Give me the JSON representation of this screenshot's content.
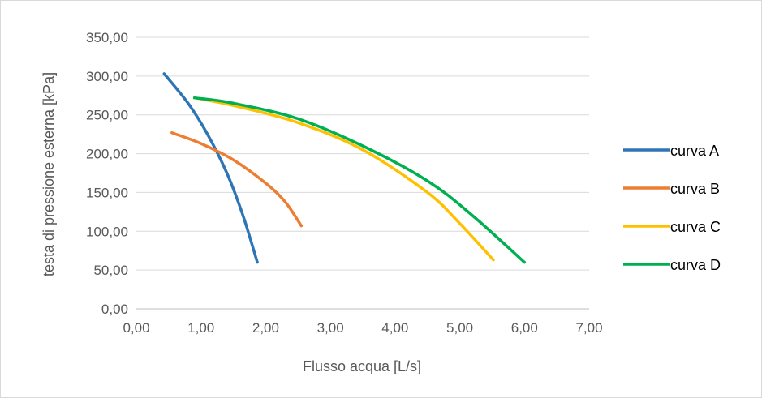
{
  "chart_data": {
    "type": "line",
    "title": "",
    "xlabel": "Flusso acqua [L/s]",
    "ylabel": "testa di pressione esterna  [kPa]",
    "xlim": [
      0,
      7
    ],
    "ylim": [
      0,
      350
    ],
    "x_ticks": [
      "0,00",
      "1,00",
      "2,00",
      "3,00",
      "4,00",
      "5,00",
      "6,00",
      "7,00"
    ],
    "y_ticks": [
      "0,00",
      "50,00",
      "100,00",
      "150,00",
      "200,00",
      "250,00",
      "300,00",
      "350,00"
    ],
    "grid": "horizontal",
    "legend_position": "right",
    "series": [
      {
        "name": "curva A",
        "color": "#2E75B6",
        "points": [
          [
            0.43,
            303
          ],
          [
            0.8,
            265
          ],
          [
            1.1,
            225
          ],
          [
            1.4,
            175
          ],
          [
            1.65,
            120
          ],
          [
            1.87,
            60
          ]
        ]
      },
      {
        "name": "curva B",
        "color": "#ED7D31",
        "points": [
          [
            0.55,
            227
          ],
          [
            1.0,
            213
          ],
          [
            1.5,
            192
          ],
          [
            2.0,
            162
          ],
          [
            2.3,
            138
          ],
          [
            2.55,
            107
          ]
        ]
      },
      {
        "name": "curva C",
        "color": "#FFC000",
        "points": [
          [
            0.9,
            272
          ],
          [
            1.5,
            262
          ],
          [
            2.5,
            240
          ],
          [
            3.5,
            205
          ],
          [
            4.5,
            150
          ],
          [
            5.0,
            110
          ],
          [
            5.52,
            63
          ]
        ]
      },
      {
        "name": "curva D",
        "color": "#00B050",
        "points": [
          [
            0.9,
            272
          ],
          [
            1.5,
            265
          ],
          [
            2.5,
            245
          ],
          [
            3.5,
            210
          ],
          [
            4.5,
            165
          ],
          [
            5.2,
            120
          ],
          [
            6.0,
            60
          ]
        ]
      }
    ]
  }
}
